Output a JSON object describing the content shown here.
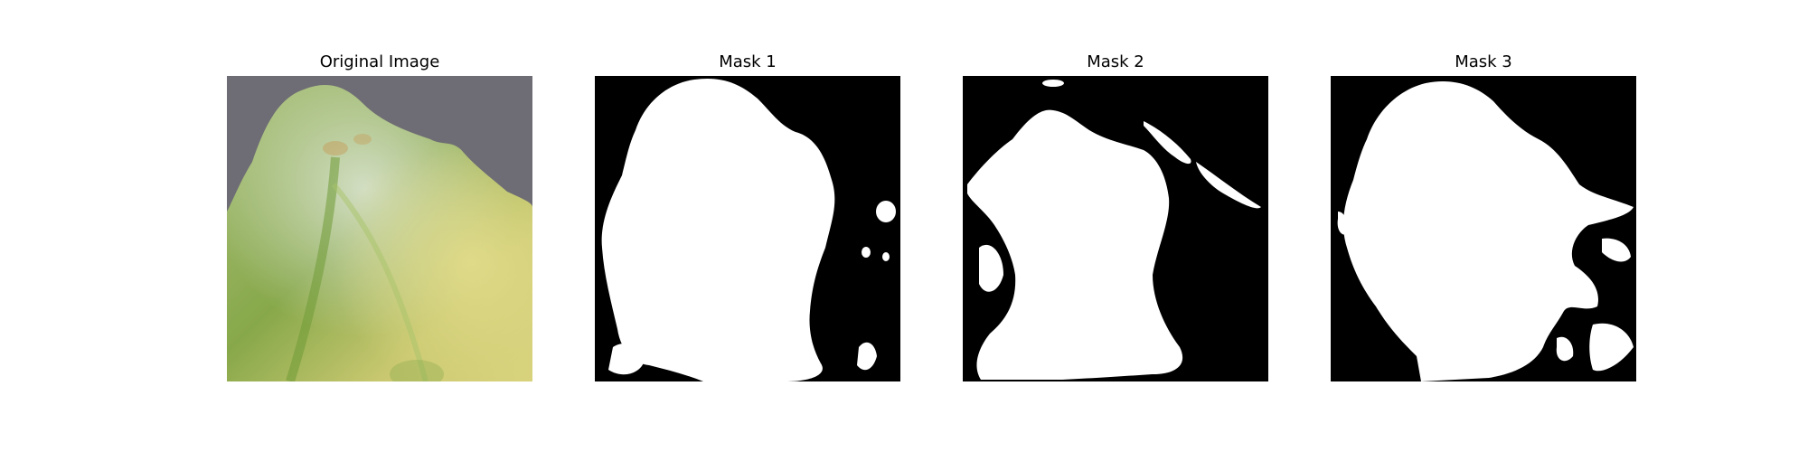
{
  "panels": [
    {
      "title": "Original Image",
      "kind": "photo"
    },
    {
      "title": "Mask 1",
      "kind": "mask"
    },
    {
      "title": "Mask 2",
      "kind": "mask"
    },
    {
      "title": "Mask 3",
      "kind": "mask"
    }
  ],
  "colors": {
    "mask_foreground": "#ffffff",
    "mask_background": "#000000",
    "photo_background": "#6e6c74",
    "leaf_green": "#7fa23a",
    "leaf_yellow": "#d6d27a",
    "leaf_pale": "#c9d8c4"
  }
}
